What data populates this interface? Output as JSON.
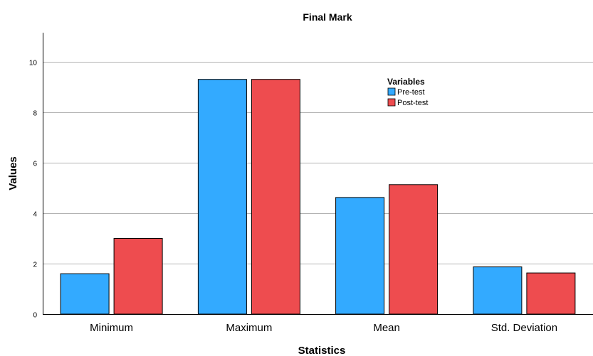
{
  "chart_data": {
    "type": "bar",
    "title": "Final Mark",
    "xlabel": "Statistics",
    "ylabel": "Values",
    "categories": [
      "Minimum",
      "Maximum",
      "Mean",
      "Std. Deviation"
    ],
    "series": [
      {
        "name": "Pre-test",
        "values": [
          1.6,
          9.3,
          4.62,
          1.87
        ],
        "color": "#33aaff"
      },
      {
        "name": "Post-test",
        "values": [
          3.0,
          9.3,
          5.13,
          1.63
        ],
        "color": "#ee4c4f"
      }
    ],
    "ylim": [
      0,
      11.15
    ],
    "yticks": [
      "0",
      "2",
      "4",
      "6",
      "8",
      "10"
    ],
    "grid": true,
    "legend": {
      "title": "Variables",
      "placement": "inside-top-right"
    }
  }
}
